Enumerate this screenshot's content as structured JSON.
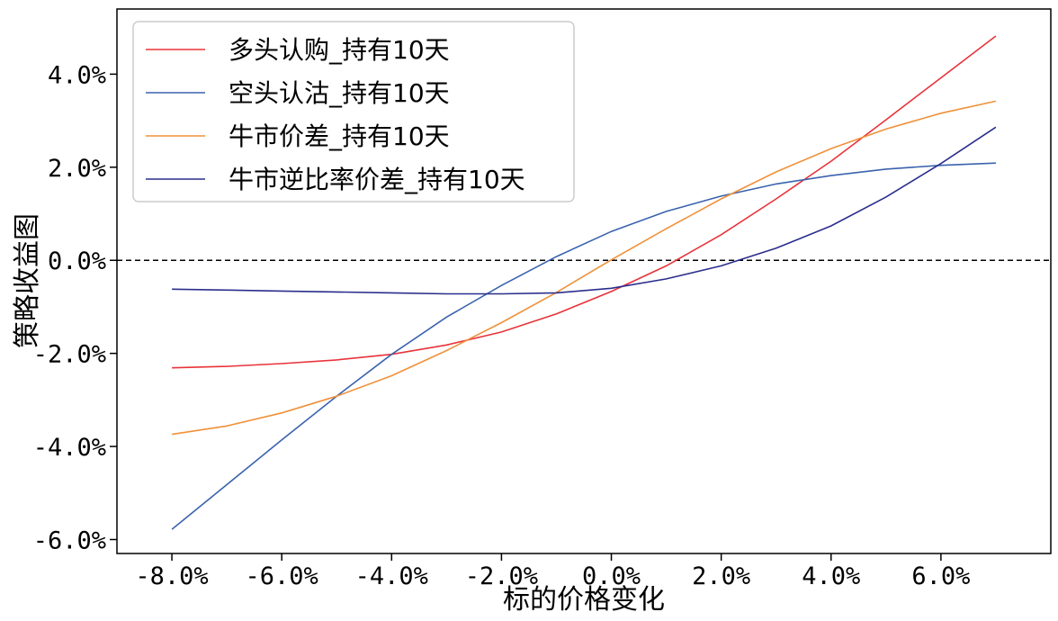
{
  "chart_data": {
    "type": "line",
    "xlabel": "标的价格变化",
    "ylabel": "策略收益图",
    "xlim": [
      -9.0,
      8.0
    ],
    "ylim": [
      -6.3,
      5.4
    ],
    "x_ticks": [
      -8,
      -6,
      -4,
      -2,
      0,
      2,
      4,
      6
    ],
    "x_tick_labels": [
      "-8.0%",
      "-6.0%",
      "-4.0%",
      "-2.0%",
      "0.0%",
      "2.0%",
      "4.0%",
      "6.0%"
    ],
    "y_ticks": [
      -6,
      -4,
      -2,
      0,
      2,
      4
    ],
    "y_tick_labels": [
      "-6.0%",
      "-4.0%",
      "-2.0%",
      "0.0%",
      "2.0%",
      "4.0%"
    ],
    "reference_line": {
      "y": 0,
      "style": "dashed",
      "color": "#000000"
    },
    "legend_position": "top-left",
    "grid": false,
    "x": [
      -8,
      -7,
      -6,
      -5,
      -4,
      -3,
      -2,
      -1,
      0,
      1,
      2,
      3,
      4,
      5,
      6,
      7
    ],
    "series": [
      {
        "name": "多头认购_持有10天",
        "color": "#e8333a",
        "values": [
          -2.31,
          -2.28,
          -2.22,
          -2.14,
          -2.02,
          -1.82,
          -1.54,
          -1.15,
          -0.67,
          -0.12,
          0.55,
          1.32,
          2.13,
          3.02,
          3.92,
          4.82
        ]
      },
      {
        "name": "空头认沽_持有10天",
        "color": "#3a63ad",
        "values": [
          -5.78,
          -4.82,
          -3.86,
          -2.92,
          -2.02,
          -1.22,
          -0.54,
          0.08,
          0.62,
          1.05,
          1.38,
          1.64,
          1.82,
          1.96,
          2.04,
          2.09
        ]
      },
      {
        "name": "牛市价差_持有10天",
        "color": "#f0913a",
        "values": [
          -3.74,
          -3.56,
          -3.28,
          -2.92,
          -2.48,
          -1.94,
          -1.34,
          -0.69,
          0.01,
          0.68,
          1.32,
          1.9,
          2.4,
          2.82,
          3.16,
          3.42
        ]
      },
      {
        "name": "牛市逆比率价差_持有10天",
        "color": "#2a2e8c",
        "values": [
          -0.62,
          -0.64,
          -0.66,
          -0.68,
          -0.7,
          -0.72,
          -0.72,
          -0.7,
          -0.6,
          -0.4,
          -0.12,
          0.26,
          0.74,
          1.36,
          2.08,
          2.86
        ]
      }
    ]
  }
}
